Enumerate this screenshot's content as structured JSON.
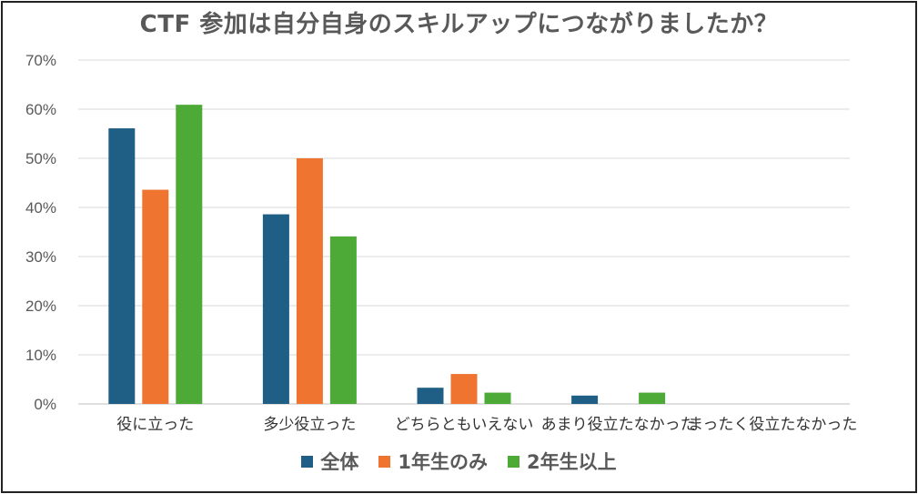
{
  "chart_data": {
    "type": "bar",
    "title": "CTF 参加は自分自身のスキルアップにつながりましたか？",
    "categories": [
      "役に立った",
      "多少役立った",
      "どちらともいえない",
      "あまり役立たなかった",
      "まったく役立たなかった"
    ],
    "series": [
      {
        "name": "全体",
        "color": "#1f5f85",
        "values": [
          56.1,
          38.6,
          3.3,
          1.7,
          0
        ]
      },
      {
        "name": "1年生のみ",
        "color": "#ee7430",
        "values": [
          43.6,
          50.0,
          6.1,
          0,
          0
        ]
      },
      {
        "name": "2年生以上",
        "color": "#4eaa36",
        "values": [
          60.9,
          34.1,
          2.3,
          2.3,
          0
        ]
      }
    ],
    "ylim": [
      0,
      70
    ],
    "yticks": [
      "0%",
      "10%",
      "20%",
      "30%",
      "40%",
      "50%",
      "60%",
      "70%"
    ],
    "grid": true,
    "legend": "bottom"
  }
}
